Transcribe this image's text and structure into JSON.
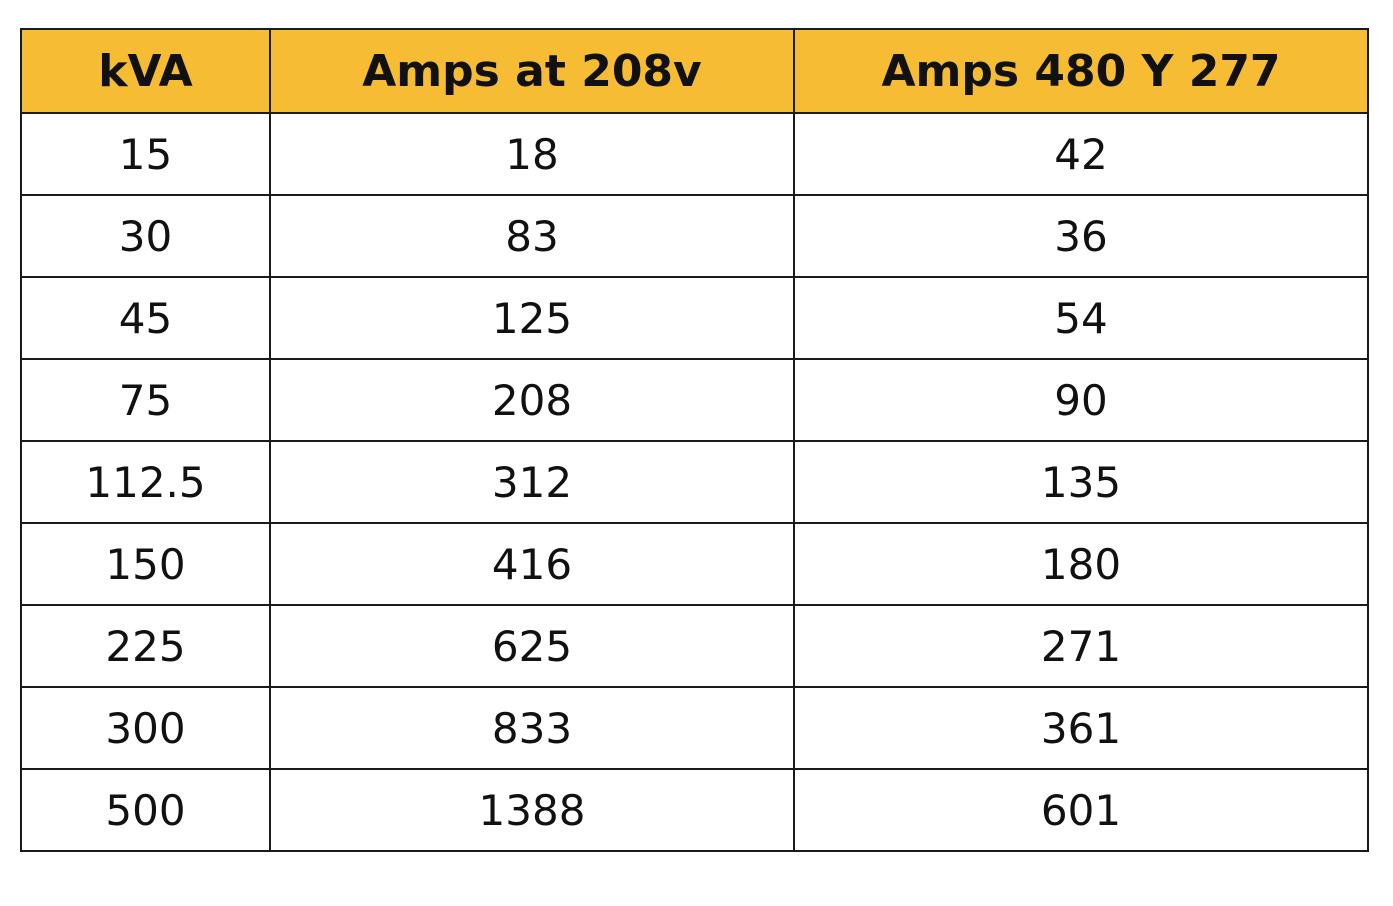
{
  "table": {
    "columns": [
      "kVA",
      "Amps at 208v",
      "Amps 480 Y 277"
    ],
    "rows": [
      [
        "15",
        "18",
        "42"
      ],
      [
        "30",
        "83",
        "36"
      ],
      [
        "45",
        "125",
        "54"
      ],
      [
        "75",
        "208",
        "90"
      ],
      [
        "112.5",
        "312",
        "135"
      ],
      [
        "150",
        "416",
        "180"
      ],
      [
        "225",
        "625",
        "271"
      ],
      [
        "300",
        "833",
        "361"
      ],
      [
        "500",
        "1388",
        "601"
      ]
    ],
    "header_color": "#f6bc33",
    "border_color": "#1a1a1a"
  }
}
